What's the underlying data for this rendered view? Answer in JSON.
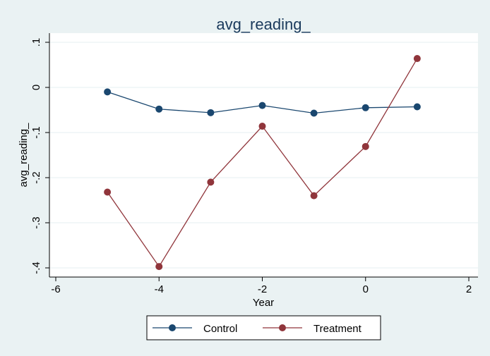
{
  "chart_data": {
    "type": "line",
    "title": "avg_reading_",
    "xlabel": "Year",
    "ylabel": "avg_reading_",
    "xlim": [
      -6,
      2
    ],
    "ylim": [
      -0.4,
      0.1
    ],
    "xticks": [
      -6,
      -4,
      -2,
      0,
      2
    ],
    "xtick_labels": [
      "-6",
      "-4",
      "-2",
      "0",
      "2"
    ],
    "yticks": [
      0.1,
      0,
      -0.1,
      -0.2,
      -0.3,
      -0.4
    ],
    "ytick_labels": [
      ".1",
      "0",
      "-.1",
      "-.2",
      "-.3",
      "-.4"
    ],
    "grid": true,
    "legend_position": "bottom",
    "x": [
      -5,
      -4,
      -3,
      -2,
      -1,
      0,
      1
    ],
    "series": [
      {
        "name": "Control",
        "color": "#1a476f",
        "values": [
          -0.01,
          -0.048,
          -0.056,
          -0.04,
          -0.057,
          -0.045,
          -0.043
        ]
      },
      {
        "name": "Treatment",
        "color": "#90353b",
        "values": [
          -0.232,
          -0.397,
          -0.21,
          -0.086,
          -0.24,
          -0.131,
          0.064
        ]
      }
    ]
  }
}
